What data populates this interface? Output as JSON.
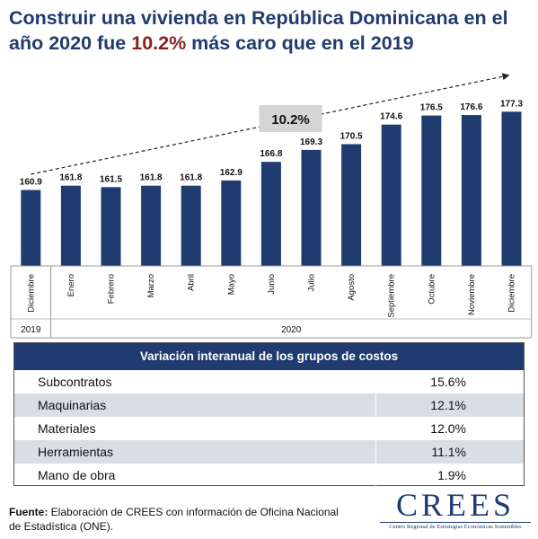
{
  "title": {
    "part1": "Construir una vivienda en República Dominicana en el año 2020 fue ",
    "highlight": "10.2%",
    "part2": " más caro que en el 2019",
    "highlight_color": "#8b1e1e",
    "title_color": "#1f3b70"
  },
  "chart_data": {
    "type": "bar",
    "categories": [
      "Diciembre",
      "Enero",
      "Febrero",
      "Marzo",
      "Abril",
      "Mayo",
      "Junio",
      "Julio",
      "Agosto",
      "Septiembre",
      "Octubre",
      "Noviembre",
      "Diciembre"
    ],
    "values": [
      160.9,
      161.8,
      161.5,
      161.8,
      161.8,
      162.9,
      166.8,
      169.3,
      170.5,
      174.6,
      176.5,
      176.6,
      177.3
    ],
    "value_labels": [
      "160.9",
      "161.8",
      "161.5",
      "161.8",
      "161.8",
      "162.9",
      "166.8",
      "169.3",
      "170.5",
      "174.6",
      "176.5",
      "176.6",
      "177.3"
    ],
    "year_groups": [
      {
        "label": "2019",
        "count": 1
      },
      {
        "label": "2020",
        "count": 12
      }
    ],
    "annotation": "10.2%",
    "bar_color": "#1f3b70",
    "title": "",
    "xlabel": "",
    "ylabel": "",
    "grid": false,
    "legend": "none"
  },
  "table": {
    "header": "Variación interanual de los grupos de costos",
    "rows": [
      {
        "name": "Subcontratos",
        "value": "15.6%"
      },
      {
        "name": "Maquinarias",
        "value": "12.1%"
      },
      {
        "name": "Materiales",
        "value": "12.0%"
      },
      {
        "name": "Herramientas",
        "value": "11.1%"
      },
      {
        "name": "Mano de obra",
        "value": "1.9%"
      }
    ],
    "header_color": "#1f3b70",
    "alt_row_color": "#d9dde5"
  },
  "footer": {
    "label": "Fuente:",
    "text": " Elaboración de CREES con información de Oficina Nacional de Estadística (ONE)."
  },
  "logo": {
    "word": "CREES",
    "subtitle": "Centro Regional de Estrategias Económicas Sostenibles"
  }
}
